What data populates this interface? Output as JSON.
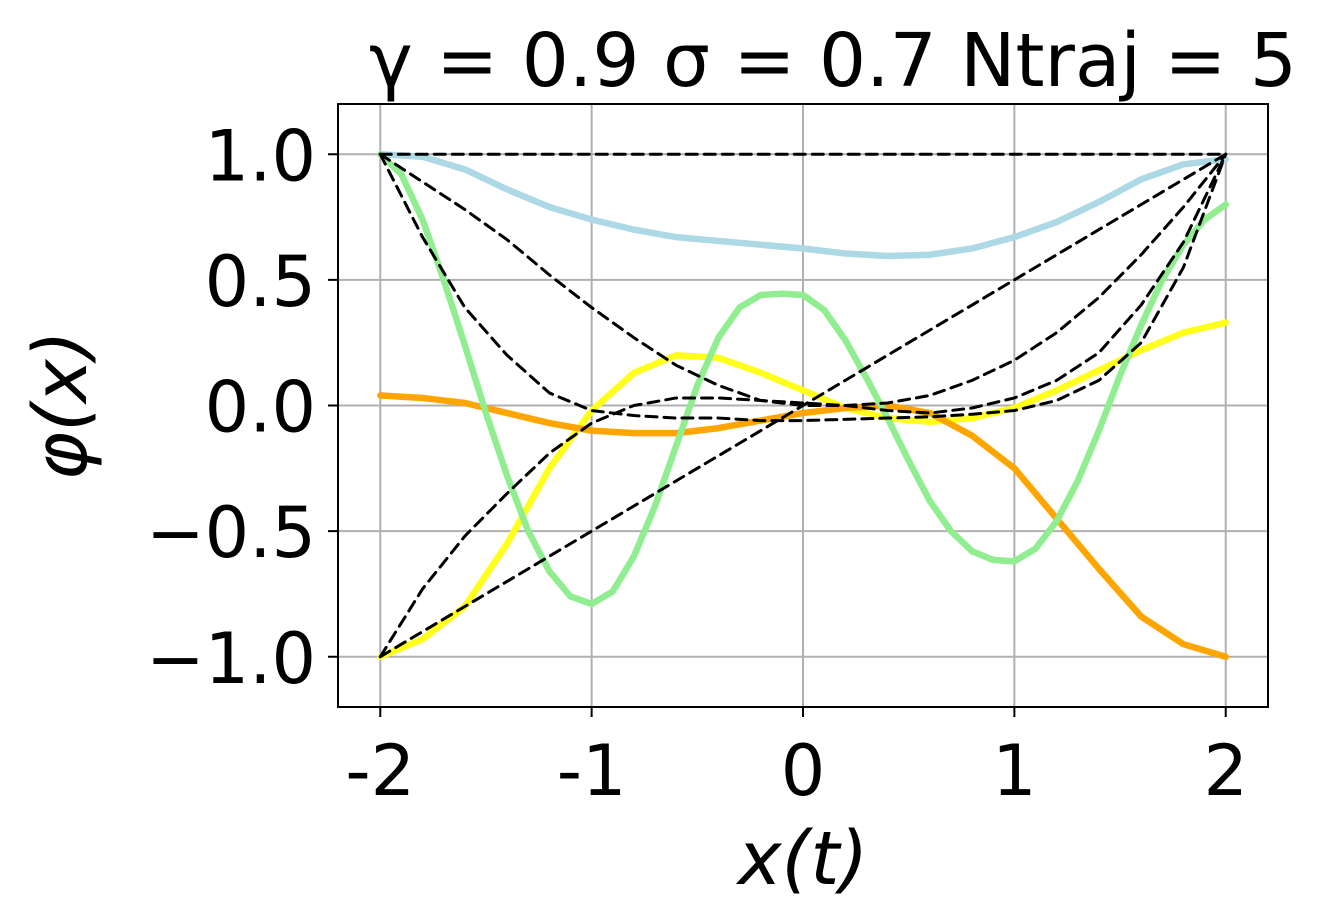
{
  "chart_data": {
    "type": "line",
    "title": "γ = 0.9 σ = 0.7 Ntraj = 5",
    "xlabel": "x(t)",
    "ylabel": "φ(x)",
    "xlim": [
      -2.2,
      2.2
    ],
    "ylim": [
      -1.2,
      1.2
    ],
    "grid": true,
    "x_ticks": [
      -2,
      -1,
      0,
      1,
      2
    ],
    "x_tick_labels": [
      "-2",
      "-1",
      "0",
      "1",
      "2"
    ],
    "y_ticks": [
      -1.0,
      -0.5,
      0.0,
      0.5,
      1.0
    ],
    "y_tick_labels": [
      "−1.0",
      "−0.5",
      "0.0",
      "0.5",
      "1.0"
    ],
    "colors": {
      "grid": "#b0b0b0",
      "reference": "#000000",
      "lightblue": "#add8e6",
      "yellow": "#ffff1a",
      "orange": "#ffa500",
      "lightgreen": "#90ee90"
    },
    "series": [
      {
        "color": "#add8e6",
        "style": "solid",
        "x": [
          -2,
          -1.8,
          -1.6,
          -1.4,
          -1.2,
          -1.0,
          -0.8,
          -0.6,
          -0.4,
          -0.2,
          0,
          0.2,
          0.4,
          0.6,
          0.8,
          1.0,
          1.2,
          1.4,
          1.6,
          1.8,
          2.0
        ],
        "y": [
          1.0,
          0.99,
          0.94,
          0.86,
          0.79,
          0.74,
          0.7,
          0.67,
          0.655,
          0.64,
          0.625,
          0.605,
          0.595,
          0.6,
          0.625,
          0.67,
          0.73,
          0.81,
          0.9,
          0.96,
          0.98
        ]
      },
      {
        "color": "#ffff1a",
        "style": "solid",
        "x": [
          -2,
          -1.8,
          -1.6,
          -1.4,
          -1.2,
          -1.0,
          -0.8,
          -0.6,
          -0.4,
          -0.2,
          0,
          0.2,
          0.4,
          0.6,
          0.8,
          1.0,
          1.2,
          1.4,
          1.6,
          1.8,
          2.0
        ],
        "y": [
          -1.0,
          -0.93,
          -0.8,
          -0.55,
          -0.25,
          -0.02,
          0.13,
          0.2,
          0.19,
          0.13,
          0.06,
          -0.01,
          -0.05,
          -0.065,
          -0.05,
          -0.01,
          0.06,
          0.14,
          0.22,
          0.29,
          0.33
        ]
      },
      {
        "color": "#ffa500",
        "style": "solid",
        "x": [
          -2,
          -1.8,
          -1.6,
          -1.4,
          -1.2,
          -1.0,
          -0.8,
          -0.6,
          -0.4,
          -0.2,
          0,
          0.2,
          0.4,
          0.6,
          0.8,
          1.0,
          1.2,
          1.4,
          1.6,
          1.8,
          2.0
        ],
        "y": [
          0.04,
          0.03,
          0.01,
          -0.03,
          -0.07,
          -0.1,
          -0.11,
          -0.11,
          -0.09,
          -0.06,
          -0.03,
          -0.01,
          0.0,
          -0.03,
          -0.12,
          -0.25,
          -0.45,
          -0.65,
          -0.84,
          -0.95,
          -1.0
        ]
      },
      {
        "color": "#90ee90",
        "style": "solid",
        "x": [
          -2,
          -1.9,
          -1.8,
          -1.7,
          -1.6,
          -1.5,
          -1.4,
          -1.3,
          -1.2,
          -1.1,
          -1.0,
          -0.9,
          -0.8,
          -0.7,
          -0.6,
          -0.5,
          -0.4,
          -0.3,
          -0.2,
          -0.1,
          0,
          0.1,
          0.2,
          0.3,
          0.4,
          0.5,
          0.6,
          0.7,
          0.8,
          0.9,
          1.0,
          1.1,
          1.2,
          1.3,
          1.4,
          1.5,
          1.6,
          1.7,
          1.8,
          1.9,
          2.0
        ],
        "y": [
          1.0,
          0.92,
          0.74,
          0.5,
          0.24,
          -0.03,
          -0.28,
          -0.5,
          -0.66,
          -0.76,
          -0.79,
          -0.74,
          -0.6,
          -0.4,
          -0.16,
          0.08,
          0.27,
          0.39,
          0.44,
          0.445,
          0.44,
          0.38,
          0.26,
          0.11,
          -0.05,
          -0.22,
          -0.38,
          -0.5,
          -0.58,
          -0.615,
          -0.62,
          -0.57,
          -0.46,
          -0.3,
          -0.1,
          0.12,
          0.32,
          0.5,
          0.64,
          0.74,
          0.8
        ]
      },
      {
        "color": "#000000",
        "style": "dashed",
        "x": [
          -2,
          2
        ],
        "y": [
          1.0,
          1.0
        ]
      },
      {
        "color": "#000000",
        "style": "dashed",
        "x": [
          -2,
          2
        ],
        "y": [
          -1.0,
          1.0
        ]
      },
      {
        "color": "#000000",
        "style": "dashed",
        "x": [
          -2,
          -1.8,
          -1.6,
          -1.4,
          -1.2,
          -1.0,
          -0.8,
          -0.6,
          -0.4,
          -0.2,
          0,
          0.2,
          0.4,
          0.6,
          0.8,
          1.0,
          1.2,
          1.4,
          1.6,
          1.8,
          2.0
        ],
        "y": [
          -1.0,
          -0.73,
          -0.52,
          -0.35,
          -0.19,
          -0.07,
          0.0,
          0.03,
          0.03,
          0.02,
          0.01,
          0.0,
          -0.02,
          -0.03,
          -0.01,
          0.03,
          0.1,
          0.21,
          0.4,
          0.65,
          1.0
        ]
      },
      {
        "color": "#000000",
        "style": "dashed",
        "x": [
          -2,
          -1.8,
          -1.6,
          -1.4,
          -1.2,
          -1.0,
          -0.8,
          -0.6,
          -0.4,
          -0.2,
          0,
          0.2,
          0.4,
          0.6,
          0.8,
          1.0,
          1.2,
          1.4,
          1.6,
          1.8,
          2.0
        ],
        "y": [
          1.0,
          0.67,
          0.39,
          0.2,
          0.05,
          -0.02,
          -0.04,
          -0.05,
          -0.05,
          -0.06,
          -0.06,
          -0.055,
          -0.05,
          -0.045,
          -0.035,
          -0.02,
          0.02,
          0.1,
          0.25,
          0.55,
          1.0
        ]
      },
      {
        "color": "#000000",
        "style": "dashed",
        "x": [
          -2,
          -1.8,
          -1.6,
          -1.4,
          -1.2,
          -1.0,
          -0.8,
          -0.6,
          -0.4,
          -0.2,
          0,
          0.2,
          0.4,
          0.6,
          0.8,
          1.0,
          1.2,
          1.4,
          1.6,
          1.8,
          2.0
        ],
        "y": [
          1.0,
          0.89,
          0.78,
          0.66,
          0.52,
          0.39,
          0.27,
          0.16,
          0.08,
          0.02,
          0.0,
          0.0,
          0.01,
          0.04,
          0.1,
          0.18,
          0.29,
          0.43,
          0.6,
          0.79,
          1.0
        ]
      }
    ]
  }
}
